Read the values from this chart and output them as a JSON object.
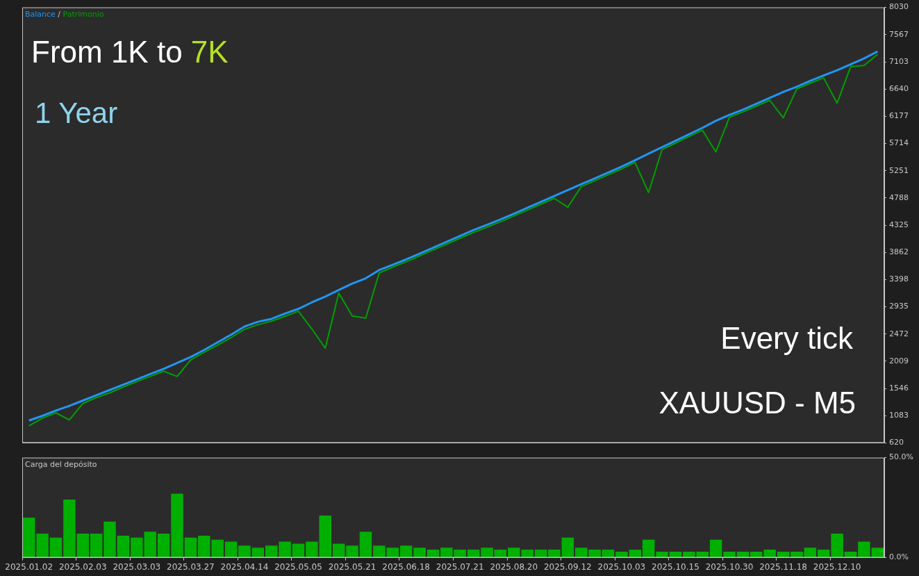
{
  "chart_data": [
    {
      "type": "line",
      "categories": [
        null,
        null,
        null,
        null,
        null,
        null,
        null,
        null,
        null,
        null,
        null,
        null,
        null,
        null,
        null,
        null,
        null,
        null,
        null,
        null,
        null,
        null,
        null,
        null,
        null,
        null,
        null,
        null,
        null,
        null,
        null,
        null,
        null,
        null,
        null,
        null,
        null,
        null,
        null,
        null,
        null,
        null,
        null,
        null,
        null,
        null,
        null,
        null,
        null,
        null,
        null,
        null,
        null,
        null,
        null,
        null,
        null,
        null,
        null,
        null,
        null,
        null,
        null,
        null
      ],
      "series": [
        {
          "name": "Balance",
          "color": "#2196f3",
          "values": [
            1000,
            1080,
            1170,
            1250,
            1340,
            1430,
            1520,
            1610,
            1700,
            1790,
            1880,
            1980,
            2080,
            2200,
            2330,
            2460,
            2600,
            2680,
            2730,
            2820,
            2900,
            3010,
            3110,
            3220,
            3330,
            3420,
            3560,
            3650,
            3740,
            3840,
            3940,
            4040,
            4140,
            4240,
            4330,
            4420,
            4520,
            4620,
            4720,
            4820,
            4920,
            5020,
            5120,
            5220,
            5320,
            5430,
            5540,
            5650,
            5760,
            5870,
            5980,
            6100,
            6200,
            6290,
            6390,
            6490,
            6590,
            6680,
            6780,
            6870,
            6960,
            7060,
            7160,
            7280
          ]
        },
        {
          "name": "Patrimonio",
          "color": "#00a000",
          "values": [
            910,
            1040,
            1130,
            1010,
            1290,
            1390,
            1470,
            1570,
            1660,
            1750,
            1840,
            1750,
            2030,
            2160,
            2280,
            2410,
            2550,
            2630,
            2690,
            2770,
            2860,
            2560,
            2230,
            3170,
            2780,
            2740,
            3510,
            3610,
            3700,
            3800,
            3900,
            4000,
            4100,
            4200,
            4290,
            4380,
            4480,
            4580,
            4680,
            4780,
            4630,
            4980,
            5080,
            5180,
            5280,
            5390,
            4880,
            5610,
            5720,
            5830,
            5940,
            5570,
            6160,
            6250,
            6350,
            6450,
            6150,
            6640,
            6740,
            6830,
            6400,
            7020,
            7040,
            7230
          ]
        }
      ],
      "ylim": [
        620,
        8030
      ],
      "yticks": [
        620,
        1083,
        1546,
        2009,
        2472,
        2935,
        3398,
        3862,
        4325,
        4788,
        5251,
        5714,
        6177,
        6640,
        7103,
        7567,
        8030
      ],
      "tick_labels": "y",
      "grid": false,
      "legend": "top left",
      "legend_title": "/",
      "annotations": [
        "From 1K to 7K",
        "1 Year",
        "Every tick",
        "XAUUSD - M5"
      ]
    },
    {
      "type": "bar",
      "title": "Carga del depósito",
      "categories": [
        "2025.01.02",
        null,
        null,
        null,
        "2025.02.03",
        null,
        null,
        null,
        "2025.03.03",
        null,
        null,
        null,
        "2025.03.27",
        null,
        null,
        null,
        "2025.04.14",
        null,
        null,
        null,
        "2025.05.05",
        null,
        null,
        null,
        "2025.05.21",
        null,
        null,
        null,
        "2025.06.18",
        null,
        null,
        null,
        "2025.07.21",
        null,
        null,
        null,
        "2025.08.20",
        null,
        null,
        null,
        "2025.09.12",
        null,
        null,
        null,
        "2025.10.03",
        null,
        null,
        null,
        "2025.10.15",
        null,
        null,
        null,
        "2025.10.30",
        null,
        null,
        null,
        "2025.11.18",
        null,
        null,
        null,
        "2025.12.10",
        null,
        null,
        null
      ],
      "values": [
        20,
        12,
        10,
        29,
        12,
        12,
        18,
        11,
        10,
        13,
        12,
        32,
        10,
        11,
        9,
        8,
        6,
        5,
        6,
        8,
        7,
        8,
        21,
        7,
        6,
        13,
        6,
        5,
        6,
        5,
        4,
        5,
        4,
        4,
        5,
        4,
        5,
        4,
        4,
        4,
        10,
        5,
        4,
        4,
        3,
        4,
        9,
        3,
        3,
        3,
        3,
        9,
        3,
        3,
        3,
        4,
        3,
        3,
        5,
        4,
        12,
        3,
        8,
        5
      ],
      "color": "#00b000",
      "ylim": [
        0,
        50
      ],
      "yticks": [
        {
          "value": 0,
          "label": "0.0%"
        },
        {
          "value": 50,
          "label": "50.0%"
        }
      ],
      "grid": false
    }
  ]
}
